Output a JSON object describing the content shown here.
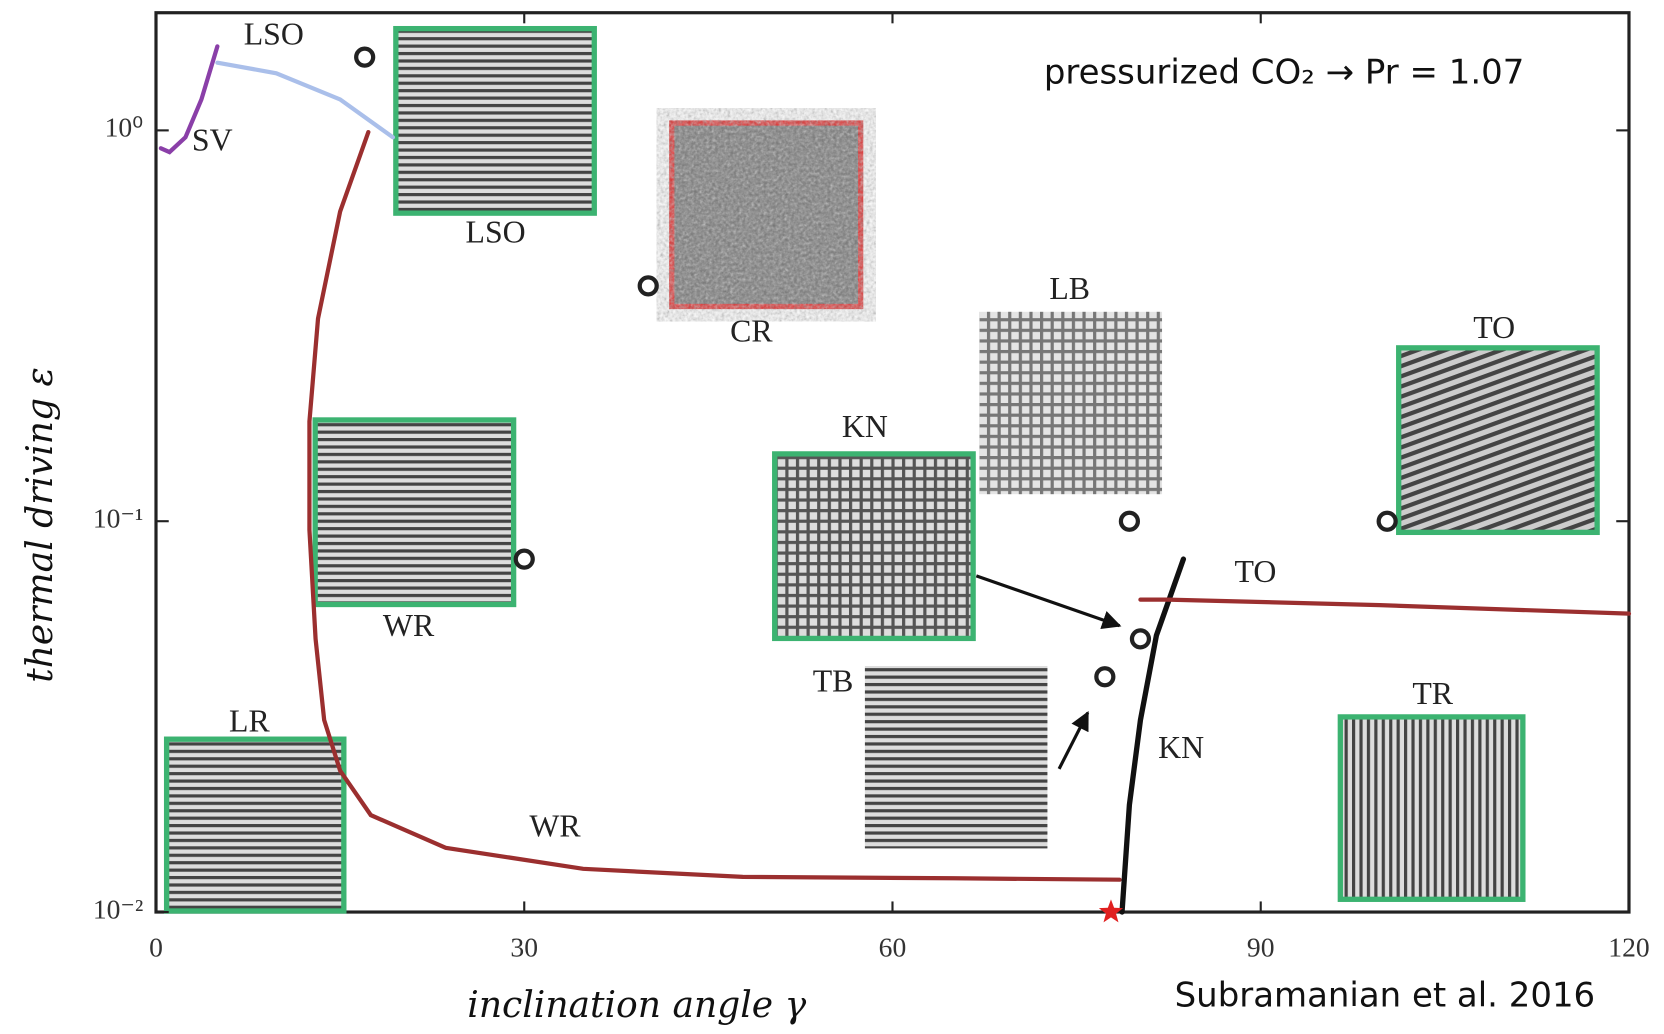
{
  "chart_data": {
    "type": "line",
    "log_y": true,
    "xlabel": "inclination angle  γ",
    "ylabel": "thermal driving ε",
    "xlim": [
      0,
      120
    ],
    "ylim": [
      0.01,
      2
    ],
    "xticks": [
      0,
      30,
      60,
      90,
      120
    ],
    "yticks": [
      {
        "value": 0.01,
        "label": "10⁻²"
      },
      {
        "value": 0.1,
        "label": "10⁻¹"
      },
      {
        "value": 1,
        "label": "10⁰"
      }
    ],
    "series": [
      {
        "color": "#8a3fa8",
        "x": [
          0.4,
          1.1,
          2.4,
          3.7,
          5
        ],
        "values": [
          0.9,
          0.88,
          0.96,
          1.2,
          1.64
        ]
      },
      {
        "color": "#aabfea",
        "x": [
          5,
          9.8,
          15,
          19.3
        ],
        "values": [
          1.49,
          1.4,
          1.2,
          0.96
        ]
      },
      {
        "color": "#9b2f2f",
        "x": [
          17.3,
          15,
          13.2,
          12.5,
          12.5,
          13,
          13.7,
          15,
          17.5,
          23.6,
          34.8,
          47.8,
          65,
          78.5
        ],
        "values": [
          0.99,
          0.62,
          0.33,
          0.18,
          0.095,
          0.05,
          0.031,
          0.023,
          0.0177,
          0.0146,
          0.0129,
          0.0123,
          0.0122,
          0.0121
        ]
      },
      {
        "color": "#111111",
        "x": [
          78.7,
          79.3,
          80.2,
          81.5,
          83.7
        ],
        "values": [
          0.01,
          0.0188,
          0.031,
          0.051,
          0.08
        ]
      },
      {
        "color": "#9b2f2f",
        "x": [
          80.2,
          82.4,
          99.7,
          120
        ],
        "values": [
          0.063,
          0.063,
          0.061,
          0.058
        ]
      }
    ],
    "scatter": {
      "color": "#222222",
      "x": [
        17,
        40.1,
        30,
        79.3,
        80.2,
        77.3,
        100.3
      ],
      "values": [
        1.54,
        0.4,
        0.08,
        0.1,
        0.05,
        0.04,
        0.1
      ]
    },
    "star": {
      "color": "#e02020",
      "x": 77.8,
      "value": 0.01
    },
    "annotations": [
      "LSO",
      "SV",
      "LSO",
      "CR",
      "LB",
      "TO",
      "KN",
      "TO",
      "WR",
      "TB",
      "TR",
      "LR",
      "KN",
      "WR"
    ],
    "note": "pressurized CO₂ → Pr = 1.07",
    "source": "Subramanian et al. 2016"
  }
}
